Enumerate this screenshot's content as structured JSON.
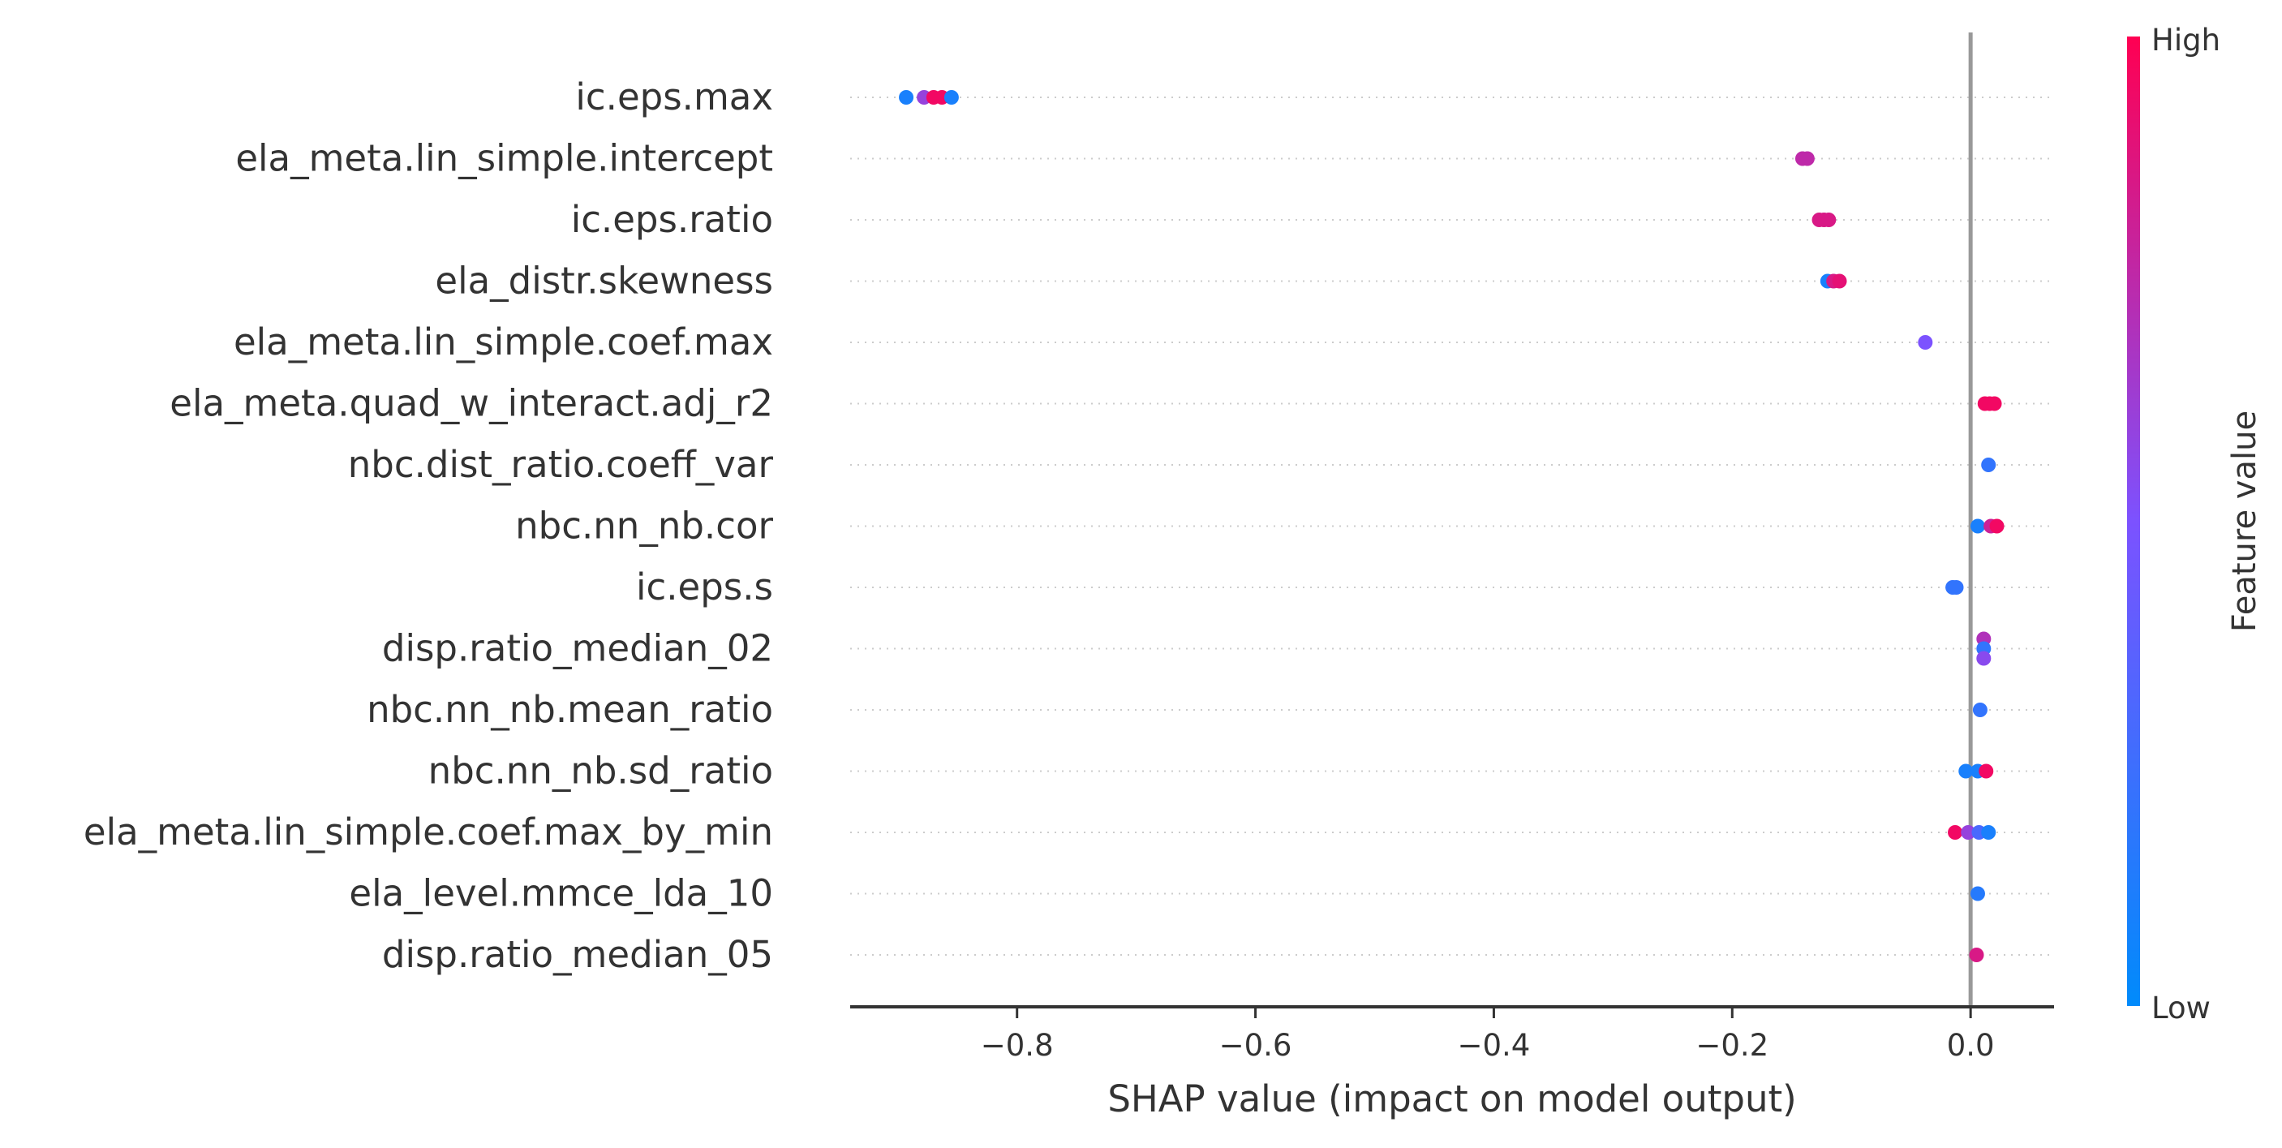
{
  "chart_data": {
    "type": "scatter",
    "subtype": "shap-beeswarm-summary",
    "title": "",
    "xlabel": "SHAP value (impact on model output)",
    "ylabel": "",
    "xlim": [
      -0.94,
      0.07
    ],
    "xticks": [
      -0.8,
      -0.6,
      -0.4,
      -0.2,
      0.0
    ],
    "xtick_labels": [
      "−0.8",
      "−0.6",
      "−0.4",
      "−0.2",
      "0.0"
    ],
    "zero_line": 0.0,
    "grid": "dotted horizontal row lines",
    "colorbar": {
      "title": "Feature value",
      "high_label": "High",
      "low_label": "Low",
      "low_color": "#008bfb",
      "high_color": "#ff0052"
    },
    "features": [
      {
        "name": "ic.eps.max",
        "points": [
          {
            "shap": -0.893,
            "v": 0.1
          },
          {
            "shap": -0.878,
            "v": 0.6
          },
          {
            "shap": -0.87,
            "v": 0.95
          },
          {
            "shap": -0.863,
            "v": 0.95
          },
          {
            "shap": -0.855,
            "v": 0.1
          }
        ]
      },
      {
        "name": "ela_meta.lin_simple.intercept",
        "points": [
          {
            "shap": -0.141,
            "v": 0.75
          },
          {
            "shap": -0.137,
            "v": 0.75
          }
        ]
      },
      {
        "name": "ic.eps.ratio",
        "points": [
          {
            "shap": -0.127,
            "v": 0.85
          },
          {
            "shap": -0.123,
            "v": 0.85
          },
          {
            "shap": -0.119,
            "v": 0.85
          }
        ]
      },
      {
        "name": "ela_distr.skewness",
        "points": [
          {
            "shap": -0.12,
            "v": 0.1
          },
          {
            "shap": -0.115,
            "v": 0.85
          },
          {
            "shap": -0.11,
            "v": 0.9
          }
        ]
      },
      {
        "name": "ela_meta.lin_simple.coef.max",
        "points": [
          {
            "shap": -0.038,
            "v": 0.5
          }
        ]
      },
      {
        "name": "ela_meta.quad_w_interact.adj_r2",
        "points": [
          {
            "shap": 0.012,
            "v": 0.95
          },
          {
            "shap": 0.016,
            "v": 0.95
          },
          {
            "shap": 0.02,
            "v": 0.95
          }
        ]
      },
      {
        "name": "nbc.dist_ratio.coeff_var",
        "points": [
          {
            "shap": 0.015,
            "v": 0.2
          }
        ]
      },
      {
        "name": "nbc.nn_nb.cor",
        "points": [
          {
            "shap": 0.006,
            "v": 0.1
          },
          {
            "shap": 0.017,
            "v": 0.8
          },
          {
            "shap": 0.022,
            "v": 0.95
          }
        ]
      },
      {
        "name": "ic.eps.s",
        "points": [
          {
            "shap": -0.015,
            "v": 0.2
          },
          {
            "shap": -0.012,
            "v": 0.2
          }
        ]
      },
      {
        "name": "disp.ratio_median_02",
        "points": [
          {
            "shap": 0.011,
            "v": 0.7,
            "dy": -1
          },
          {
            "shap": 0.011,
            "v": 0.2,
            "dy": 0
          },
          {
            "shap": 0.011,
            "v": 0.55,
            "dy": 1
          }
        ]
      },
      {
        "name": "nbc.nn_nb.mean_ratio",
        "points": [
          {
            "shap": 0.008,
            "v": 0.2
          }
        ]
      },
      {
        "name": "nbc.nn_nb.sd_ratio",
        "points": [
          {
            "shap": -0.004,
            "v": 0.1
          },
          {
            "shap": 0.006,
            "v": 0.1
          },
          {
            "shap": 0.013,
            "v": 0.95
          }
        ]
      },
      {
        "name": "ela_meta.lin_simple.coef.max_by_min",
        "points": [
          {
            "shap": -0.013,
            "v": 0.95
          },
          {
            "shap": -0.002,
            "v": 0.6
          },
          {
            "shap": 0.007,
            "v": 0.3
          },
          {
            "shap": 0.015,
            "v": 0.1
          }
        ]
      },
      {
        "name": "ela_level.mmce_lda_10",
        "points": [
          {
            "shap": 0.006,
            "v": 0.15
          }
        ]
      },
      {
        "name": "disp.ratio_median_05",
        "points": [
          {
            "shap": 0.005,
            "v": 0.85
          }
        ]
      }
    ]
  }
}
